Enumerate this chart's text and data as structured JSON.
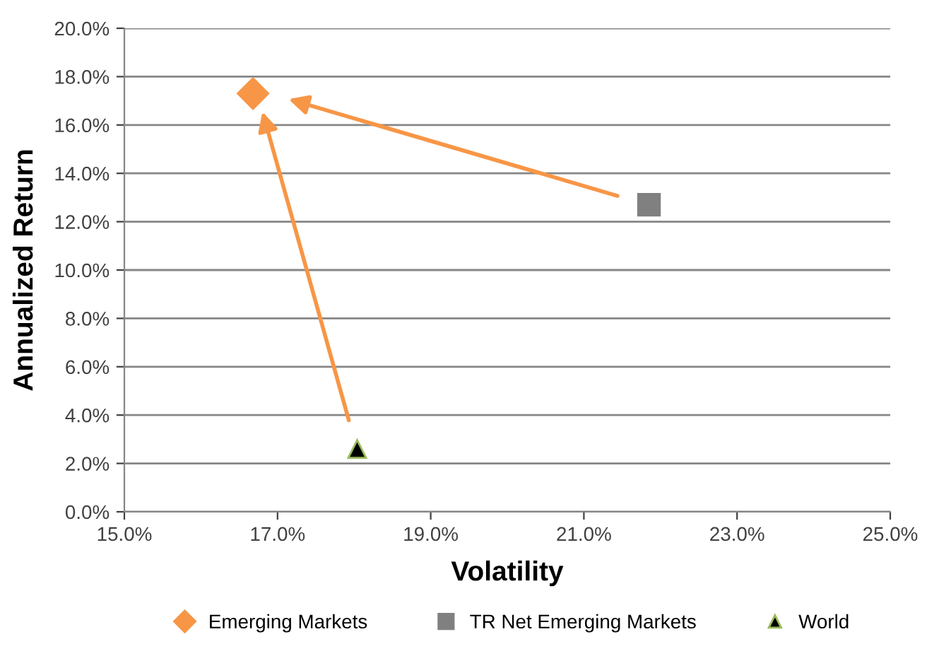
{
  "chart_data": {
    "type": "scatter",
    "xlabel": "Volatility",
    "ylabel": "Annualized Return",
    "xlim": [
      15,
      25
    ],
    "ylim": [
      0,
      20
    ],
    "xticks": [
      {
        "value": 15,
        "label": "15.0%"
      },
      {
        "value": 17,
        "label": "17.0%"
      },
      {
        "value": 19,
        "label": "19.0%"
      },
      {
        "value": 21,
        "label": "21.0%"
      },
      {
        "value": 23,
        "label": "23.0%"
      },
      {
        "value": 25,
        "label": "25.0%"
      }
    ],
    "yticks": [
      {
        "value": 0,
        "label": "0.0%"
      },
      {
        "value": 2,
        "label": "2.0%"
      },
      {
        "value": 4,
        "label": "4.0%"
      },
      {
        "value": 6,
        "label": "6.0%"
      },
      {
        "value": 8,
        "label": "8.0%"
      },
      {
        "value": 10,
        "label": "10.0%"
      },
      {
        "value": 12,
        "label": "12.0%"
      },
      {
        "value": 14,
        "label": "14.0%"
      },
      {
        "value": 16,
        "label": "16.0%"
      },
      {
        "value": 18,
        "label": "18.0%"
      },
      {
        "value": 20,
        "label": "20.0%"
      }
    ],
    "grid": "y",
    "legend": "bottom",
    "series": [
      {
        "name": "Emerging Markets",
        "color": "#f79646",
        "marker": "diamond",
        "x": [
          16.68
        ],
        "values": [
          17.3
        ]
      },
      {
        "name": "TR Net Emerging Markets",
        "color": "#808080",
        "marker": "square",
        "x": [
          21.85
        ],
        "values": [
          12.7
        ]
      },
      {
        "name": "World",
        "color": "#000000",
        "marker": "triangle",
        "x": [
          18.04
        ],
        "values": [
          2.6
        ]
      }
    ]
  }
}
